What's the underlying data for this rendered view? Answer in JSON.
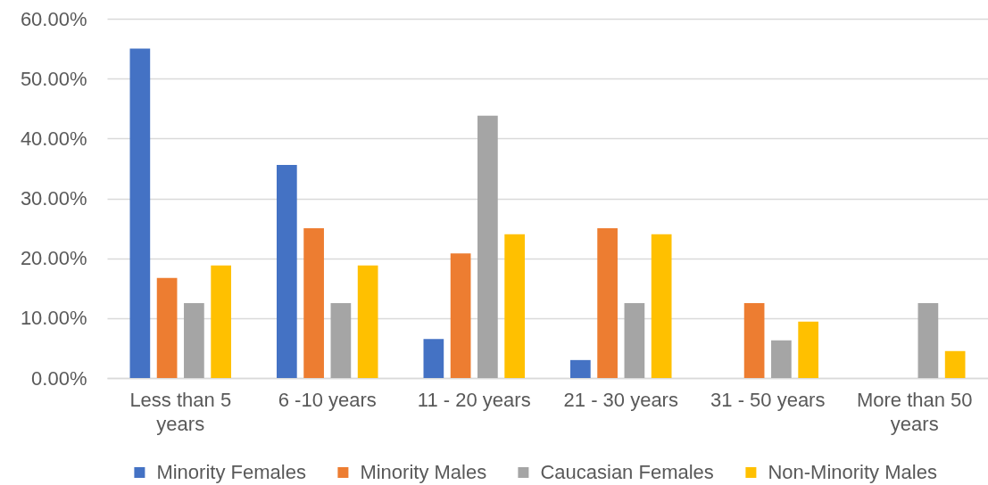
{
  "chart_data": {
    "type": "bar",
    "categories": [
      "Less than 5 years",
      "6 -10 years",
      "11 - 20 years",
      "21 - 30 years",
      "31 - 50 years",
      "More than 50 years"
    ],
    "series": [
      {
        "name": "Minority Females",
        "color": "#4472c4",
        "values": [
          55,
          35.6,
          6.5,
          3.0,
          0,
          0
        ]
      },
      {
        "name": "Minority Males",
        "color": "#ed7d31",
        "values": [
          16.7,
          25,
          20.8,
          25,
          12.5,
          0
        ]
      },
      {
        "name": "Caucasian Females",
        "color": "#a5a5a5",
        "values": [
          12.5,
          12.5,
          43.8,
          12.5,
          6.3,
          12.5
        ]
      },
      {
        "name": "Non-Minority Males",
        "color": "#ffc000",
        "values": [
          18.8,
          18.8,
          24,
          24,
          9.4,
          4.5
        ]
      }
    ],
    "ylim": [
      0,
      60
    ],
    "yticks": [
      {
        "value": 0,
        "label": "0.00%"
      },
      {
        "value": 10,
        "label": "10.00%"
      },
      {
        "value": 20,
        "label": "20.00%"
      },
      {
        "value": 30,
        "label": "30.00%"
      },
      {
        "value": 40,
        "label": "40.00%"
      },
      {
        "value": 50,
        "label": "50.00%"
      },
      {
        "value": 60,
        "label": "60.00%"
      }
    ],
    "grid": "y",
    "legend": "bottom"
  }
}
